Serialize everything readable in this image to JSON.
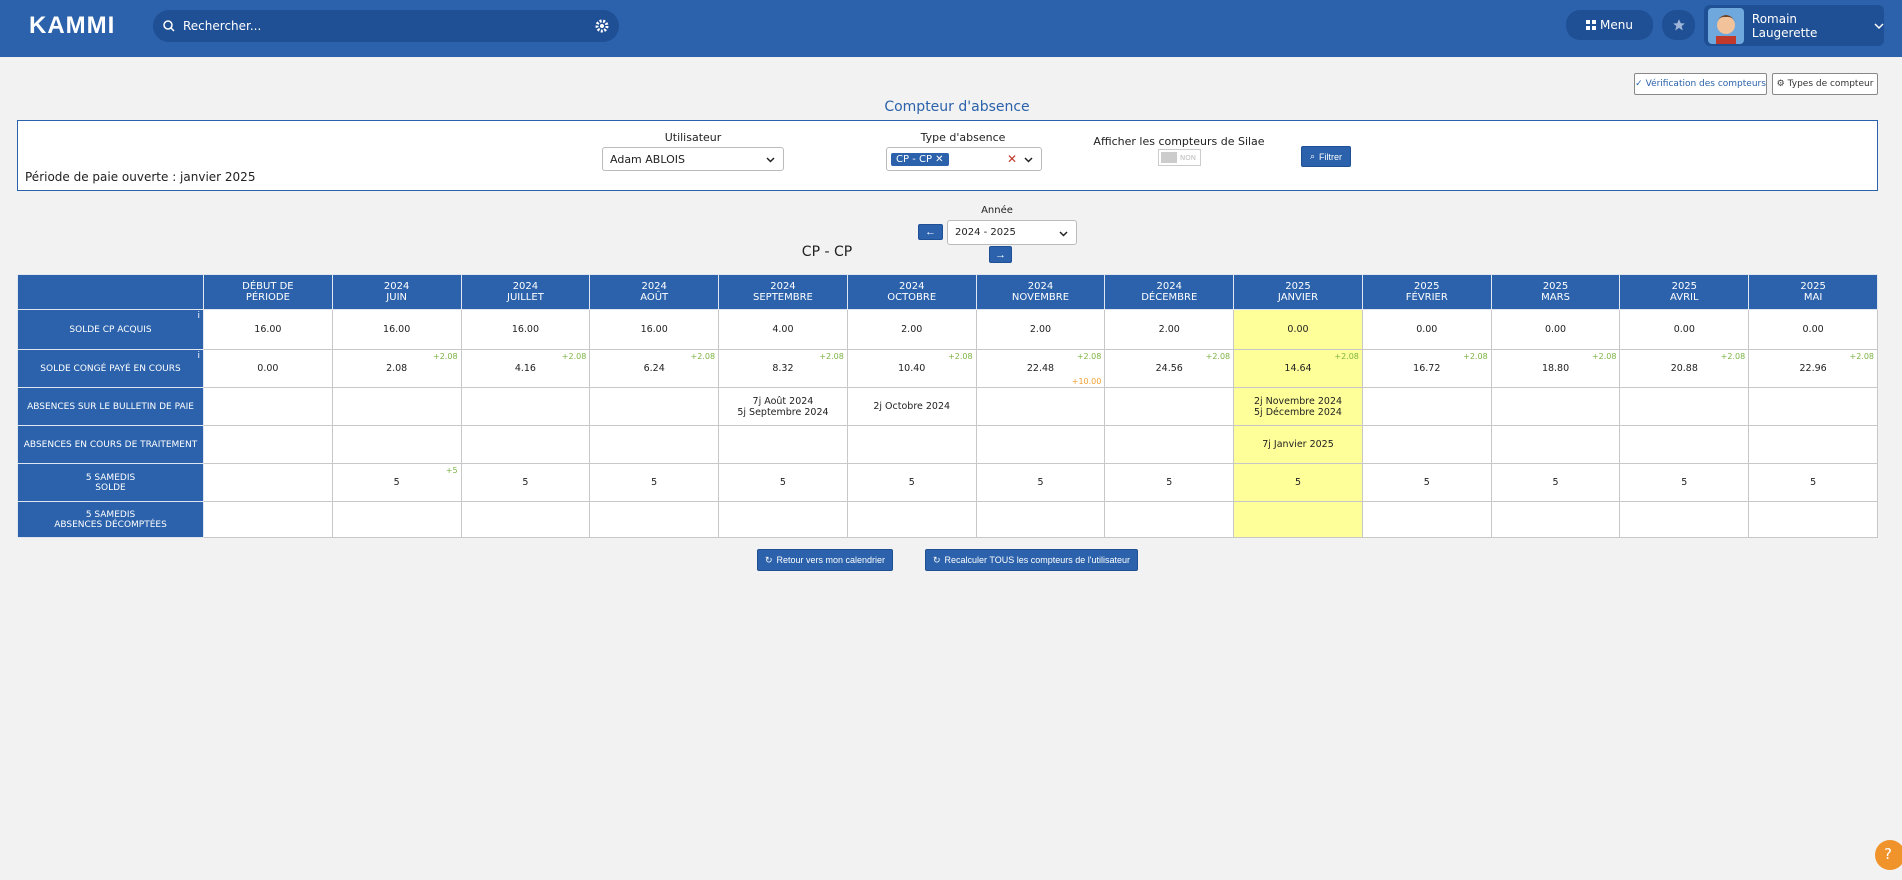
{
  "header": {
    "logo": "KAMMI",
    "search_placeholder": "Rechercher...",
    "menu": "Menu",
    "user_name": "Romain Laugerette"
  },
  "toolbar": {
    "verify": "Vérification des compteurs",
    "types": "Types de compteur"
  },
  "title": "Compteur d'absence",
  "filters": {
    "period": "Période de paie ouverte : janvier 2025",
    "user_label": "Utilisateur",
    "user_value": "Adam ABLOIS",
    "type_label": "Type d'absence",
    "type_tag": "CP - CP",
    "silae_label": "Afficher les compteurs de Silae",
    "silae_toggle": "NON",
    "filter_button": "Filtrer"
  },
  "year": {
    "label": "Année",
    "value": "2024 - 2025"
  },
  "table": {
    "title": "CP - CP",
    "columns": [
      {
        "lines": [
          "DÉBUT DE",
          "PÉRIODE"
        ]
      },
      {
        "lines": [
          "2024",
          "JUIN"
        ]
      },
      {
        "lines": [
          "2024",
          "JUILLET"
        ]
      },
      {
        "lines": [
          "2024",
          "AOÛT"
        ]
      },
      {
        "lines": [
          "2024",
          "SEPTEMBRE"
        ]
      },
      {
        "lines": [
          "2024",
          "OCTOBRE"
        ]
      },
      {
        "lines": [
          "2024",
          "NOVEMBRE"
        ]
      },
      {
        "lines": [
          "2024",
          "DÉCEMBRE"
        ]
      },
      {
        "lines": [
          "2025",
          "JANVIER"
        ],
        "current": true
      },
      {
        "lines": [
          "2025",
          "FÉVRIER"
        ]
      },
      {
        "lines": [
          "2025",
          "MARS"
        ]
      },
      {
        "lines": [
          "2025",
          "AVRIL"
        ]
      },
      {
        "lines": [
          "2025",
          "MAI"
        ]
      }
    ],
    "rows": [
      {
        "label": [
          "SOLDE CP ACQUIS"
        ],
        "info": "i",
        "cells": [
          {
            "value": "16.00"
          },
          {
            "value": "16.00"
          },
          {
            "value": "16.00"
          },
          {
            "value": "16.00"
          },
          {
            "value": "4.00"
          },
          {
            "value": "2.00"
          },
          {
            "value": "2.00"
          },
          {
            "value": "2.00"
          },
          {
            "value": "0.00"
          },
          {
            "value": "0.00"
          },
          {
            "value": "0.00"
          },
          {
            "value": "0.00"
          },
          {
            "value": "0.00"
          }
        ]
      },
      {
        "label": [
          "SOLDE CONGÉ PAYÉ EN COURS"
        ],
        "info": "i",
        "cells": [
          {
            "value": "0.00"
          },
          {
            "value": "2.08",
            "delta": "+2.08"
          },
          {
            "value": "4.16",
            "delta": "+2.08"
          },
          {
            "value": "6.24",
            "delta": "+2.08"
          },
          {
            "value": "8.32",
            "delta": "+2.08"
          },
          {
            "value": "10.40",
            "delta": "+2.08"
          },
          {
            "value": "22.48",
            "delta": "+2.08",
            "extra": "+10.00"
          },
          {
            "value": "24.56",
            "delta": "+2.08"
          },
          {
            "value": "14.64",
            "delta": "+2.08"
          },
          {
            "value": "16.72",
            "delta": "+2.08"
          },
          {
            "value": "18.80",
            "delta": "+2.08"
          },
          {
            "value": "20.88",
            "delta": "+2.08"
          },
          {
            "value": "22.96",
            "delta": "+2.08"
          }
        ]
      },
      {
        "label": [
          "ABSENCES SUR LE BULLETIN DE PAIE"
        ],
        "cells": [
          null,
          null,
          null,
          null,
          {
            "lines": [
              "7j Août 2024",
              "5j Septembre 2024"
            ]
          },
          {
            "lines": [
              "2j Octobre 2024"
            ]
          },
          null,
          null,
          {
            "lines": [
              "2j Novembre 2024",
              "5j Décembre 2024"
            ]
          },
          null,
          null,
          null,
          null
        ]
      },
      {
        "label": [
          "ABSENCES EN COURS DE TRAITEMENT"
        ],
        "cells": [
          null,
          null,
          null,
          null,
          null,
          null,
          null,
          null,
          {
            "lines": [
              "7j Janvier 2025"
            ]
          },
          null,
          null,
          null,
          null
        ]
      },
      {
        "label": [
          "5 SAMEDIS",
          "SOLDE"
        ],
        "cells": [
          null,
          {
            "value": "5",
            "delta": "+5"
          },
          {
            "value": "5"
          },
          {
            "value": "5"
          },
          {
            "value": "5"
          },
          {
            "value": "5"
          },
          {
            "value": "5"
          },
          {
            "value": "5"
          },
          {
            "value": "5"
          },
          {
            "value": "5"
          },
          {
            "value": "5"
          },
          {
            "value": "5"
          },
          {
            "value": "5"
          }
        ]
      },
      {
        "label": [
          "5 SAMEDIS",
          "ABSENCES DÉCOMPTÉES"
        ],
        "cells": [
          null,
          null,
          null,
          null,
          null,
          null,
          null,
          null,
          null,
          null,
          null,
          null,
          null
        ]
      }
    ]
  },
  "actions": {
    "back": "Retour vers mon calendrier",
    "recalc": "Recalculer TOUS les compteurs de l'utilisateur"
  }
}
